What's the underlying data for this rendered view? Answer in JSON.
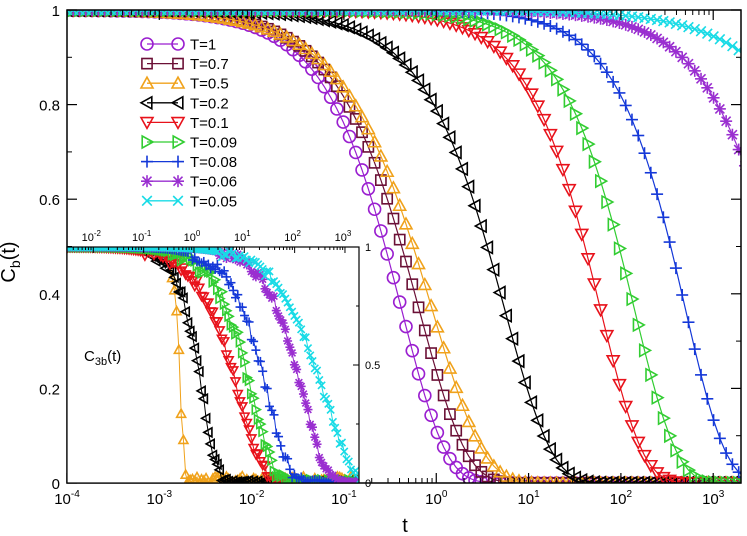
{
  "chart_data": [
    {
      "type": "line",
      "role": "main",
      "xscale": "log",
      "xlim": [
        0.0001,
        2000
      ],
      "ylim": [
        0,
        1
      ],
      "xlabel": "t",
      "ylabel_main": "C",
      "ylabel_sub": "b",
      "ylabel_tail": "(t)",
      "x_ticks": [
        {
          "value": 0.0001,
          "base": "10",
          "exp": "-4"
        },
        {
          "value": 0.001,
          "base": "10",
          "exp": "-3"
        },
        {
          "value": 0.01,
          "base": "10",
          "exp": "-2"
        },
        {
          "value": 0.1,
          "base": "10",
          "exp": "-1"
        },
        {
          "value": 1,
          "base": "10",
          "exp": "0"
        },
        {
          "value": 10,
          "base": "10",
          "exp": "1"
        },
        {
          "value": 100,
          "base": "10",
          "exp": "2"
        },
        {
          "value": 1000,
          "base": "10",
          "exp": "3"
        }
      ],
      "y_ticks": [
        {
          "value": 0,
          "label": "0"
        },
        {
          "value": 0.2,
          "label": "0.2"
        },
        {
          "value": 0.4,
          "label": "0.4"
        },
        {
          "value": 0.6,
          "label": "0.6"
        },
        {
          "value": 0.8,
          "label": "0.8"
        },
        {
          "value": 1,
          "label": "1"
        }
      ],
      "legend_position": "top-left",
      "series": [
        {
          "name": "T=1",
          "color": "#9a1fd0",
          "marker": "circle",
          "tau": 0.42,
          "beta": 0.9
        },
        {
          "name": "T=0.7",
          "color": "#6b1036",
          "marker": "square",
          "tau": 0.65,
          "beta": 0.85
        },
        {
          "name": "T=0.5",
          "color": "#f0a21b",
          "marker": "triangle-up",
          "tau": 0.9,
          "beta": 0.78
        },
        {
          "name": "T=0.2",
          "color": "#000000",
          "marker": "triangle-left",
          "tau": 5.5,
          "beta": 0.85
        },
        {
          "name": "T=0.1",
          "color": "#e8121b",
          "marker": "triangle-down",
          "tau": 60,
          "beta": 0.95
        },
        {
          "name": "T=0.09",
          "color": "#32cd32",
          "marker": "triangle-right",
          "tau": 140,
          "beta": 0.95
        },
        {
          "name": "T=0.08",
          "color": "#1438d8",
          "marker": "plus",
          "tau": 500,
          "beta": 1.0
        },
        {
          "name": "T=0.06",
          "color": "#9a2fd0",
          "marker": "star",
          "tau": 6500,
          "beta": 0.85
        },
        {
          "name": "T=0.05",
          "color": "#19dbe6",
          "marker": "x",
          "tau": 60000,
          "beta": 0.7
        }
      ]
    },
    {
      "type": "line",
      "role": "inset",
      "label_main": "C",
      "label_sub": "3b",
      "label_tail": "(t)",
      "xscale": "log",
      "xlim": [
        0.003,
        1900
      ],
      "ylim": [
        0,
        1
      ],
      "x_ticks_top": [
        {
          "value": 0.01,
          "base": "10",
          "exp": "-2"
        },
        {
          "value": 0.1,
          "base": "10",
          "exp": "-1"
        },
        {
          "value": 1,
          "base": "10",
          "exp": "0"
        },
        {
          "value": 10,
          "base": "10",
          "exp": "1"
        },
        {
          "value": 100,
          "base": "10",
          "exp": "2"
        },
        {
          "value": 1000,
          "base": "10",
          "exp": "3"
        }
      ],
      "y_ticks_right": [
        {
          "value": 0,
          "label": "0"
        },
        {
          "value": 0.5,
          "label": "0.5"
        },
        {
          "value": 1,
          "label": "1"
        }
      ],
      "series": [
        {
          "name": "T=0.5",
          "tau": 0.55,
          "beta": 6,
          "noise": 0.06
        },
        {
          "name": "T=0.2",
          "tau": 1.5,
          "beta": 1.5,
          "noise": 0.02
        },
        {
          "name": "T=0.1",
          "tau": 8,
          "beta": 0.9,
          "noise": 0.02
        },
        {
          "name": "T=0.09",
          "tau": 15,
          "beta": 1.0,
          "noise": 0.03
        },
        {
          "name": "T=0.08",
          "tau": 30,
          "beta": 1.0,
          "noise": 0.03
        },
        {
          "name": "T=0.06",
          "tau": 150,
          "beta": 1.0,
          "noise": 0.02
        },
        {
          "name": "T=0.05",
          "tau": 400,
          "beta": 0.8,
          "noise": 0.02
        }
      ]
    }
  ]
}
